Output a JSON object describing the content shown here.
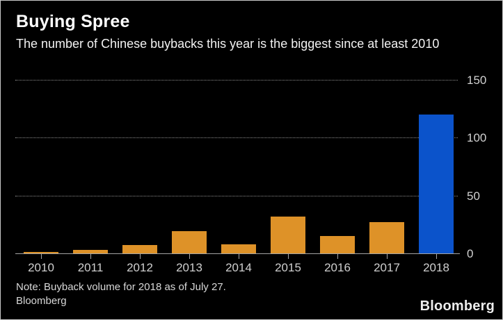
{
  "header": {
    "title": "Buying Spree",
    "subtitle": "The number of Chinese buybacks this year is the biggest since at least 2010"
  },
  "chart_data": {
    "type": "bar",
    "title": "Buying Spree",
    "subtitle": "The number of Chinese buybacks this year is the biggest since at least 2010",
    "categories": [
      "2010",
      "2011",
      "2012",
      "2013",
      "2014",
      "2015",
      "2016",
      "2017",
      "2018"
    ],
    "values": [
      1,
      3,
      7,
      19,
      8,
      32,
      15,
      27,
      120
    ],
    "xlabel": "",
    "ylabel": "",
    "ylim": [
      0,
      150
    ],
    "yticks": [
      0,
      50,
      100,
      150
    ],
    "y_axis_side": "right",
    "grid": "horizontal-dotted",
    "legend": "none",
    "highlight_category": "2018",
    "bar_color_default": "#de9228",
    "bar_color_highlight": "#0b53cb"
  },
  "footer": {
    "note_line1": "Note: Buyback volume for 2018 as of July 27.",
    "note_line2": "Bloomberg",
    "brand": "Bloomberg"
  },
  "colors": {
    "background": "#000000",
    "grid": "#8f8f8f",
    "axis": "#a6a6a6",
    "axis_text": "#d2d2d2",
    "title_text": "#ffffff"
  }
}
